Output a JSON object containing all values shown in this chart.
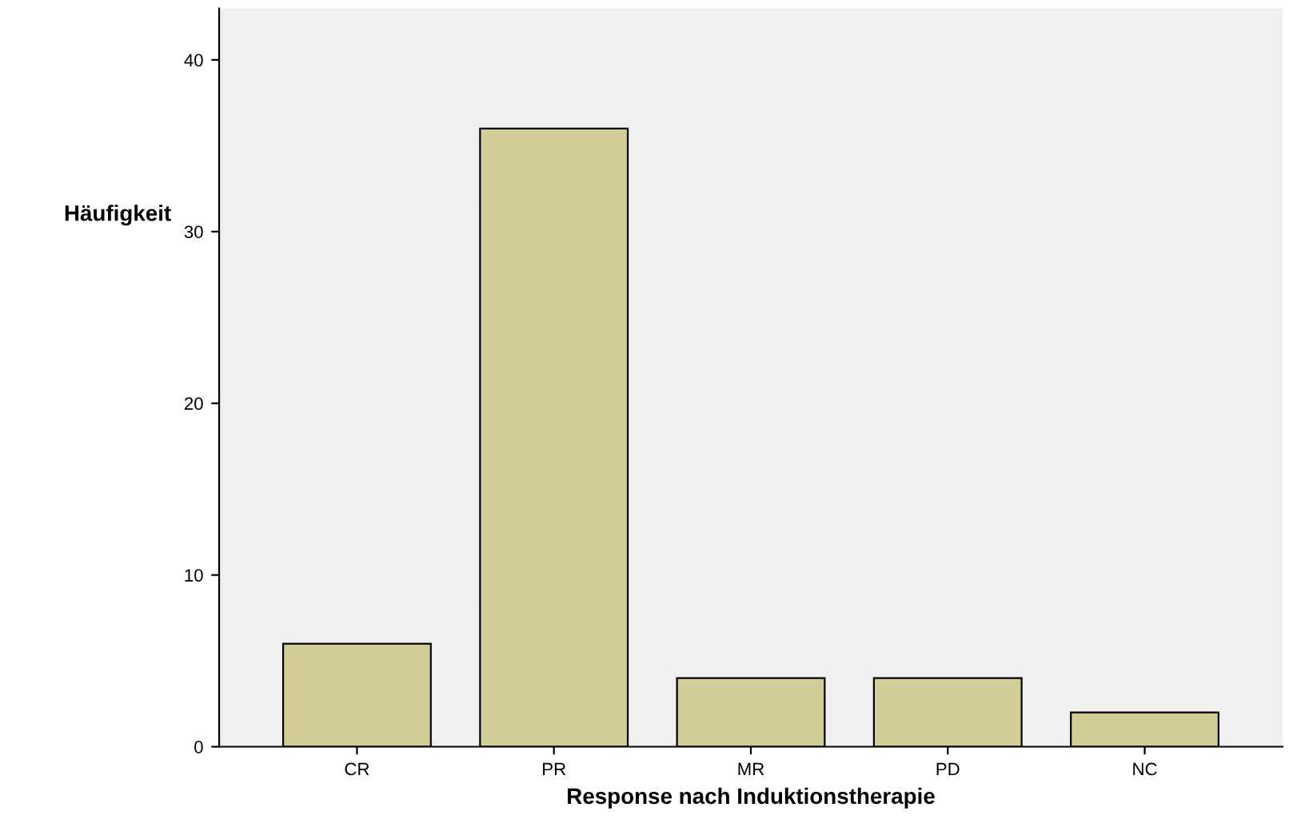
{
  "chart_data": {
    "type": "bar",
    "xlabel": "Response nach Induktionstherapie",
    "ylabel": "Häufigkeit",
    "categories": [
      "CR",
      "PR",
      "MR",
      "PD",
      "NC"
    ],
    "values": [
      6,
      36,
      4,
      4,
      2
    ],
    "color": "#d3ce97",
    "ylim": [
      0,
      43
    ],
    "yticks": [
      0,
      10,
      20,
      30,
      40
    ],
    "grid": false
  }
}
